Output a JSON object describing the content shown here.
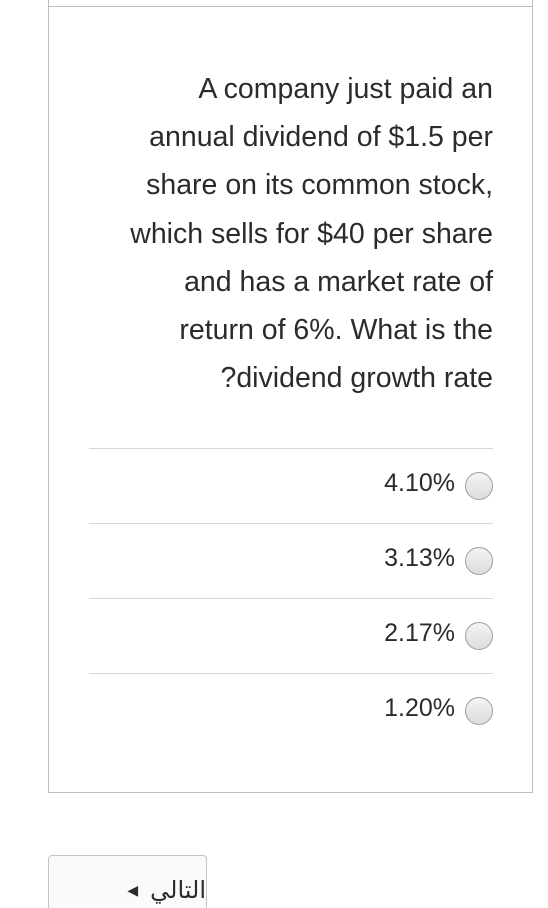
{
  "question": {
    "lines": [
      "A company just paid an",
      "annual dividend of $1.5 per",
      "share on its common stock,",
      "which sells for $40 per share",
      "and has a market rate of",
      "return of 6%. What is the",
      "?dividend growth rate"
    ]
  },
  "options": [
    {
      "label": "4.10%"
    },
    {
      "label": "3.13%"
    },
    {
      "label": "2.17%"
    },
    {
      "label": "1.20%"
    }
  ],
  "navigation": {
    "next_label": "التالي",
    "next_arrow_icon": "caret-left-icon"
  }
}
